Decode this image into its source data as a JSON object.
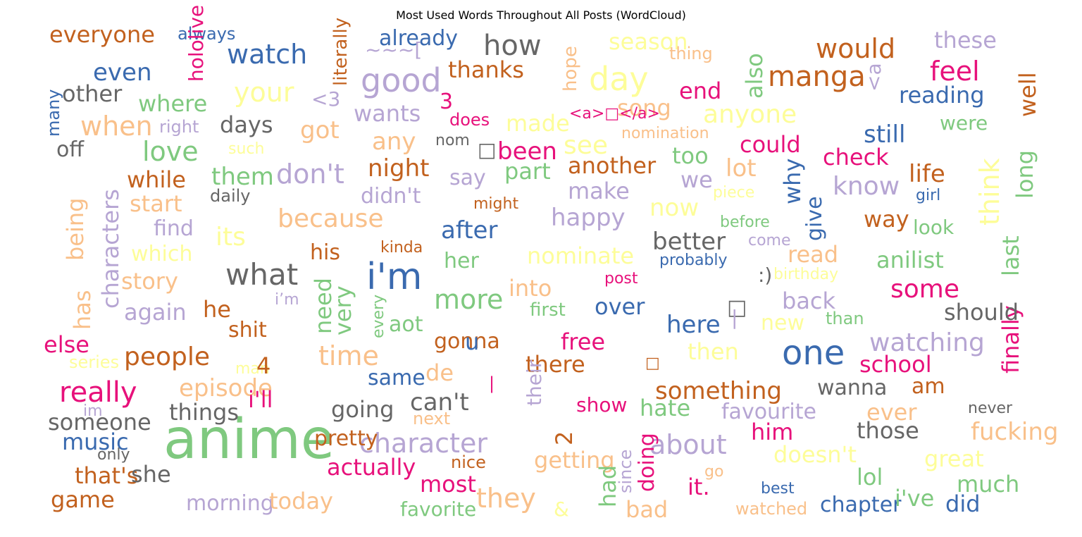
{
  "title": "Most Used Words Throughout All Posts (WordCloud)",
  "palette": {
    "orange": "#C2611E",
    "blue": "#3A6AAF",
    "grey": "#666666",
    "lavender": "#B6A5D3",
    "peach": "#F9C08A",
    "green": "#7FC97F",
    "yellow": "#FDFD99",
    "pink": "#E7117B"
  },
  "words": [
    {
      "text": "anime",
      "color": "green"
    },
    {
      "text": "i'm",
      "color": "blue"
    },
    {
      "text": "one",
      "color": "blue"
    },
    {
      "text": "day",
      "color": "yellow"
    },
    {
      "text": "good",
      "color": "lavender"
    },
    {
      "text": "really",
      "color": "pink"
    },
    {
      "text": "manga",
      "color": "orange"
    },
    {
      "text": "what",
      "color": "grey"
    },
    {
      "text": "how",
      "color": "grey"
    },
    {
      "text": "watch",
      "color": "blue"
    },
    {
      "text": "when",
      "color": "peach"
    },
    {
      "text": "time",
      "color": "peach"
    },
    {
      "text": "would",
      "color": "orange"
    },
    {
      "text": "don't",
      "color": "lavender"
    },
    {
      "text": "character",
      "color": "lavender"
    },
    {
      "text": "about",
      "color": "lavender"
    },
    {
      "text": "they",
      "color": "peach"
    },
    {
      "text": "love",
      "color": "green"
    },
    {
      "text": "feel",
      "color": "pink"
    },
    {
      "text": "some",
      "color": "pink"
    },
    {
      "text": "people",
      "color": "orange"
    },
    {
      "text": "something",
      "color": "orange"
    },
    {
      "text": "because",
      "color": "peach"
    },
    {
      "text": "more",
      "color": "green"
    },
    {
      "text": "watching",
      "color": "lavender"
    },
    {
      "text": "your",
      "color": "yellow"
    },
    {
      "text": "anyone",
      "color": "yellow"
    },
    {
      "text": "think",
      "color": "yellow"
    },
    {
      "text": "everyone",
      "color": "orange"
    },
    {
      "text": "reading",
      "color": "blue"
    },
    {
      "text": "still",
      "color": "blue"
    },
    {
      "text": "know",
      "color": "lavender"
    },
    {
      "text": "even",
      "color": "blue"
    },
    {
      "text": "already",
      "color": "blue"
    },
    {
      "text": "thanks",
      "color": "orange"
    },
    {
      "text": "these",
      "color": "lavender"
    },
    {
      "text": "season",
      "color": "yellow"
    },
    {
      "text": "also",
      "color": "green"
    },
    {
      "text": "well",
      "color": "orange"
    },
    {
      "text": "other",
      "color": "grey"
    },
    {
      "text": "where",
      "color": "green"
    },
    {
      "text": "end",
      "color": "pink"
    },
    {
      "text": "wants",
      "color": "lavender"
    },
    {
      "text": "song",
      "color": "peach"
    },
    {
      "text": "made",
      "color": "yellow"
    },
    {
      "text": "got",
      "color": "peach"
    },
    {
      "text": "days",
      "color": "grey"
    },
    {
      "text": "right",
      "color": "lavender"
    },
    {
      "text": "does",
      "color": "pink"
    },
    {
      "text": "were",
      "color": "green"
    },
    {
      "text": "long",
      "color": "green"
    },
    {
      "text": "off",
      "color": "grey"
    },
    {
      "text": "any",
      "color": "peach"
    },
    {
      "text": "nom",
      "color": "grey"
    },
    {
      "text": "been",
      "color": "pink"
    },
    {
      "text": "see",
      "color": "yellow"
    },
    {
      "text": "too",
      "color": "green"
    },
    {
      "text": "could",
      "color": "pink"
    },
    {
      "text": "check",
      "color": "pink"
    },
    {
      "text": "nomination",
      "color": "peach"
    },
    {
      "text": "such",
      "color": "yellow"
    },
    {
      "text": "while",
      "color": "orange"
    },
    {
      "text": "them",
      "color": "green"
    },
    {
      "text": "night",
      "color": "orange"
    },
    {
      "text": "part",
      "color": "green"
    },
    {
      "text": "another",
      "color": "orange"
    },
    {
      "text": "lot",
      "color": "peach"
    },
    {
      "text": "why",
      "color": "blue"
    },
    {
      "text": "life",
      "color": "orange"
    },
    {
      "text": "say",
      "color": "lavender"
    },
    {
      "text": "we",
      "color": "lavender"
    },
    {
      "text": "start",
      "color": "peach"
    },
    {
      "text": "daily",
      "color": "grey"
    },
    {
      "text": "didn't",
      "color": "lavender"
    },
    {
      "text": "might",
      "color": "orange"
    },
    {
      "text": "make",
      "color": "lavender"
    },
    {
      "text": "piece",
      "color": "yellow"
    },
    {
      "text": "give",
      "color": "blue"
    },
    {
      "text": "girl",
      "color": "blue"
    },
    {
      "text": "now",
      "color": "yellow"
    },
    {
      "text": "way",
      "color": "orange"
    },
    {
      "text": "find",
      "color": "lavender"
    },
    {
      "text": "its",
      "color": "yellow"
    },
    {
      "text": "after",
      "color": "blue"
    },
    {
      "text": "happy",
      "color": "lavender"
    },
    {
      "text": "before",
      "color": "green"
    },
    {
      "text": "look",
      "color": "green"
    },
    {
      "text": "characters",
      "color": "lavender"
    },
    {
      "text": "being",
      "color": "peach"
    },
    {
      "text": "which",
      "color": "yellow"
    },
    {
      "text": "his",
      "color": "orange"
    },
    {
      "text": "kinda",
      "color": "orange"
    },
    {
      "text": "better",
      "color": "grey"
    },
    {
      "text": "come",
      "color": "lavender"
    },
    {
      "text": "last",
      "color": "green"
    },
    {
      "text": "her",
      "color": "green"
    },
    {
      "text": "nominate",
      "color": "yellow"
    },
    {
      "text": "probably",
      "color": "blue"
    },
    {
      "text": "read",
      "color": "peach"
    },
    {
      "text": "anilist",
      "color": "green"
    },
    {
      "text": "story",
      "color": "peach"
    },
    {
      "text": "post",
      "color": "pink"
    },
    {
      "text": "birthday",
      "color": "yellow"
    },
    {
      "text": "finally",
      "color": "pink"
    },
    {
      "text": "has",
      "color": "peach"
    },
    {
      "text": "again",
      "color": "lavender"
    },
    {
      "text": "he",
      "color": "orange"
    },
    {
      "text": "i’m",
      "color": "lavender"
    },
    {
      "text": "need",
      "color": "green"
    },
    {
      "text": "very",
      "color": "green"
    },
    {
      "text": "into",
      "color": "peach"
    },
    {
      "text": "first",
      "color": "green"
    },
    {
      "text": "over",
      "color": "blue"
    },
    {
      "text": "back",
      "color": "lavender"
    },
    {
      "text": "should",
      "color": "grey"
    },
    {
      "text": "shit",
      "color": "orange"
    },
    {
      "text": "every",
      "color": "green"
    },
    {
      "text": "aot",
      "color": "green"
    },
    {
      "text": "here",
      "color": "blue"
    },
    {
      "text": "new",
      "color": "yellow"
    },
    {
      "text": "than",
      "color": "green"
    },
    {
      "text": "else",
      "color": "pink"
    },
    {
      "text": "gonna",
      "color": "orange"
    },
    {
      "text": "u",
      "color": "blue"
    },
    {
      "text": "free",
      "color": "pink"
    },
    {
      "text": "then",
      "color": "yellow"
    },
    {
      "text": "series",
      "color": "yellow"
    },
    {
      "text": "man",
      "color": "yellow"
    },
    {
      "text": "4",
      "color": "orange"
    },
    {
      "text": "same",
      "color": "blue"
    },
    {
      "text": "de",
      "color": "peach"
    },
    {
      "text": "there",
      "color": "orange"
    },
    {
      "text": "school",
      "color": "pink"
    },
    {
      "text": "episode",
      "color": "peach"
    },
    {
      "text": "i'll",
      "color": "pink"
    },
    {
      "text": "going",
      "color": "grey"
    },
    {
      "text": "can't",
      "color": "grey"
    },
    {
      "text": "their",
      "color": "lavender"
    },
    {
      "text": "2",
      "color": "orange"
    },
    {
      "text": "show",
      "color": "pink"
    },
    {
      "text": "hate",
      "color": "green"
    },
    {
      "text": "wanna",
      "color": "grey"
    },
    {
      "text": "am",
      "color": "orange"
    },
    {
      "text": "someone",
      "color": "grey"
    },
    {
      "text": "im",
      "color": "lavender"
    },
    {
      "text": "things",
      "color": "grey"
    },
    {
      "text": "next",
      "color": "peach"
    },
    {
      "text": "favourite",
      "color": "lavender"
    },
    {
      "text": "ever",
      "color": "peach"
    },
    {
      "text": "never",
      "color": "grey"
    },
    {
      "text": "music",
      "color": "blue"
    },
    {
      "text": "pretty",
      "color": "orange"
    },
    {
      "text": "him",
      "color": "pink"
    },
    {
      "text": "those",
      "color": "grey"
    },
    {
      "text": "fucking",
      "color": "peach"
    },
    {
      "text": "only",
      "color": "grey"
    },
    {
      "text": "nice",
      "color": "orange"
    },
    {
      "text": "getting",
      "color": "peach"
    },
    {
      "text": "had",
      "color": "green"
    },
    {
      "text": "since",
      "color": "lavender"
    },
    {
      "text": "doesn't",
      "color": "yellow"
    },
    {
      "text": "great",
      "color": "yellow"
    },
    {
      "text": "that's",
      "color": "orange"
    },
    {
      "text": "she",
      "color": "grey"
    },
    {
      "text": "actually",
      "color": "pink"
    },
    {
      "text": "doing",
      "color": "pink"
    },
    {
      "text": "go",
      "color": "peach"
    },
    {
      "text": "lol",
      "color": "green"
    },
    {
      "text": "much",
      "color": "green"
    },
    {
      "text": "most",
      "color": "pink"
    },
    {
      "text": "it.",
      "color": "pink"
    },
    {
      "text": "best",
      "color": "blue"
    },
    {
      "text": "game",
      "color": "orange"
    },
    {
      "text": "morning",
      "color": "lavender"
    },
    {
      "text": "today",
      "color": "peach"
    },
    {
      "text": "favorite",
      "color": "green"
    },
    {
      "text": "bad",
      "color": "peach"
    },
    {
      "text": "watched",
      "color": "peach"
    },
    {
      "text": "chapter",
      "color": "blue"
    },
    {
      "text": "i've",
      "color": "green"
    },
    {
      "text": "did",
      "color": "blue"
    },
    {
      "text": "always",
      "color": "blue"
    },
    {
      "text": "literally",
      "color": "orange"
    },
    {
      "text": "hope",
      "color": "peach"
    },
    {
      "text": "thing",
      "color": "peach"
    },
    {
      "text": "many",
      "color": "blue"
    },
    {
      "text": "hololive",
      "color": "pink"
    },
    {
      "text": "<a",
      "color": "lavender"
    },
    {
      "text": "<3",
      "color": "lavender"
    },
    {
      "text": "3",
      "color": "pink"
    },
    {
      "text": "<a>□</a>",
      "color": "pink"
    },
    {
      "text": "~~~[",
      "color": "lavender"
    },
    {
      "text": "□",
      "color": "grey"
    },
    {
      "text": "□",
      "color": "orange"
    },
    {
      "text": "□",
      "color": "grey"
    },
    {
      "text": ":)",
      "color": "grey"
    },
    {
      "text": "&",
      "color": "yellow"
    },
    {
      "text": "|",
      "color": "lavender"
    },
    {
      "text": "|",
      "color": "pink"
    },
    {
      "text": "—",
      "color": "lavender"
    }
  ]
}
